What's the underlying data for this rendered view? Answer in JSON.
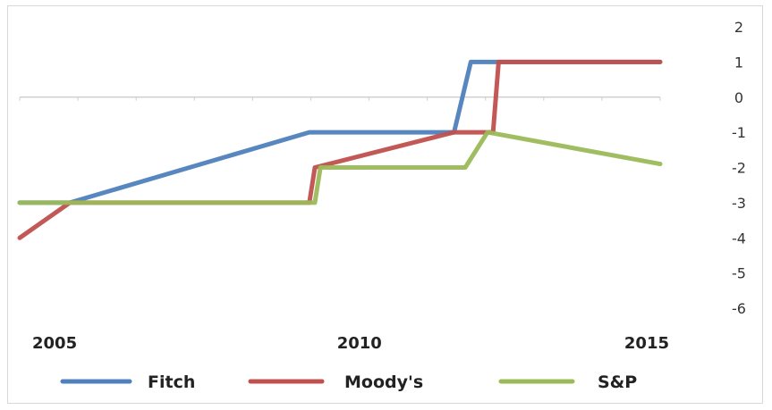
{
  "chart_data": {
    "type": "line",
    "xlim": [
      2003.9,
      2015.4
    ],
    "ylim": [
      -6,
      2
    ],
    "y_ticks": [
      "2",
      "1",
      "0",
      "-1",
      "-2",
      "-3",
      "-4",
      "-5",
      "-6"
    ],
    "x_ticks": [
      "2005",
      "2010",
      "2015"
    ],
    "x_tick_values": [
      2005,
      2010,
      2015
    ],
    "grid": false,
    "legend_position": "bottom",
    "series": [
      {
        "name": "Fitch",
        "color": "#4f81bd",
        "x": [
          2003.9,
          2004.8,
          2009.1,
          2011.7,
          2012.0,
          2015.4
        ],
        "y": [
          -3,
          -3,
          -1,
          -1,
          1,
          1
        ]
      },
      {
        "name": "Moody's",
        "color": "#c0504d",
        "x": [
          2003.9,
          2004.8,
          2009.1,
          2009.2,
          2011.7,
          2012.4,
          2012.5,
          2015.4
        ],
        "y": [
          -4,
          -3,
          -3,
          -2,
          -1,
          -1,
          1,
          1
        ]
      },
      {
        "name": "S&P",
        "color": "#9bbb59",
        "x": [
          2003.9,
          2009.2,
          2009.3,
          2011.9,
          2012.3,
          2015.4
        ],
        "y": [
          -3,
          -3,
          -2,
          -2,
          -1,
          -1.9
        ]
      }
    ]
  }
}
